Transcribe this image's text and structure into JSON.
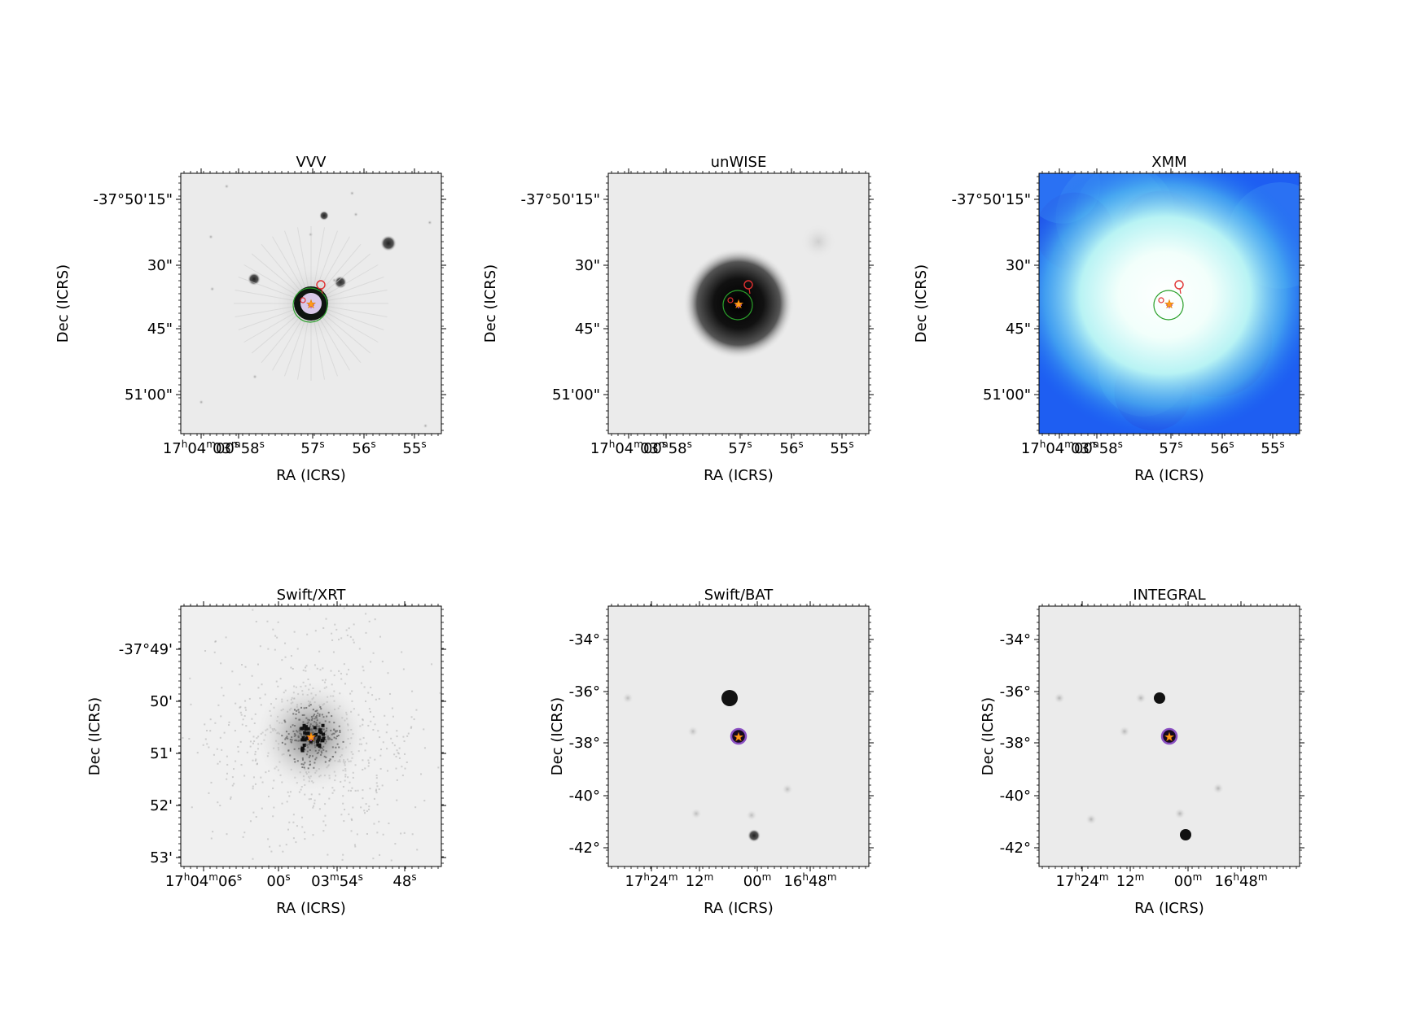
{
  "figure": {
    "panels": [
      {
        "title": "VVV",
        "xlabel": "RA (ICRS)",
        "ylabel": "Dec (ICRS)",
        "xticks": [
          "17h04m00s",
          "03m58s",
          "57s",
          "56s",
          "55s"
        ],
        "yticks": [
          "-37°50'15\"",
          "30\"",
          "45\"",
          "51'00\""
        ],
        "image": {
          "colormap": "greyscale",
          "target": "compact-bright-source-with-diffraction-halo",
          "field_sources": [
            "bright-star-upper-right",
            "star-left-of-center",
            "star-right-of-center",
            "faint-scattered-stars"
          ]
        },
        "markers": [
          "green-circle",
          "red-small-circles",
          "orange-star",
          "pink-cross"
        ]
      },
      {
        "title": "unWISE",
        "xlabel": "RA (ICRS)",
        "ylabel": "Dec (ICRS)",
        "xticks": [
          "17h04m00s",
          "03m58s",
          "57s",
          "56s",
          "55s"
        ],
        "yticks": [
          "-37°50'15\"",
          "30\"",
          "45\"",
          "51'00\""
        ],
        "image": {
          "colormap": "greyscale",
          "target": "broad-dark-blob",
          "field_sources": [
            "faint-smudge-upper-right"
          ]
        },
        "markers": [
          "green-circle",
          "red-small-circles",
          "orange-star",
          "pink-cross"
        ]
      },
      {
        "title": "XMM",
        "xlabel": "RA (ICRS)",
        "ylabel": "Dec (ICRS)",
        "xticks": [
          "17h04m00s",
          "03m58s",
          "57s",
          "56s",
          "55s"
        ],
        "yticks": [
          "-37°50'15\"",
          "30\"",
          "45\"",
          "51'00\""
        ],
        "image": {
          "colormap": "blue-to-white",
          "target": "bright-extended-emission",
          "field_sources": []
        },
        "markers": [
          "green-circle",
          "red-small-circles",
          "orange-star",
          "pink-cross"
        ]
      },
      {
        "title": "Swift/XRT",
        "xlabel": "RA (ICRS)",
        "ylabel": "Dec (ICRS)",
        "xticks": [
          "17h04m06s",
          "00s",
          "03m54s",
          "48s"
        ],
        "yticks": [
          "-37°49'",
          "50'",
          "51'",
          "52'",
          "53'"
        ],
        "image": {
          "colormap": "greyscale",
          "target": "photon-counts-cluster",
          "field_sources": [
            "scattered-background-counts"
          ]
        },
        "markers": [
          "orange-star",
          "pink-cross"
        ]
      },
      {
        "title": "Swift/BAT",
        "xlabel": "RA (ICRS)",
        "ylabel": "Dec (ICRS)",
        "xticks": [
          "17h24m",
          "12m",
          "00m",
          "16h48m"
        ],
        "yticks": [
          "-34°",
          "-36°",
          "-38°",
          "-40°",
          "-42°"
        ],
        "image": {
          "colormap": "greyscale",
          "target": "point-source",
          "field_sources": [
            "bright-source-above-target",
            "source-lower-center",
            "faint-source-left",
            "faint-sources-scattered"
          ]
        },
        "markers": [
          "purple-ring",
          "orange-star"
        ]
      },
      {
        "title": "INTEGRAL",
        "xlabel": "RA (ICRS)",
        "ylabel": "Dec (ICRS)",
        "xticks": [
          "17h24m",
          "12m",
          "00m",
          "16h48m"
        ],
        "yticks": [
          "-34°",
          "-36°",
          "-38°",
          "-40°",
          "-42°"
        ],
        "image": {
          "colormap": "greyscale",
          "target": "point-source",
          "field_sources": [
            "bright-source-above-target",
            "bright-source-lower",
            "faint-source-left",
            "faint-sources-scattered"
          ]
        },
        "markers": [
          "purple-ring",
          "orange-star"
        ]
      }
    ]
  }
}
